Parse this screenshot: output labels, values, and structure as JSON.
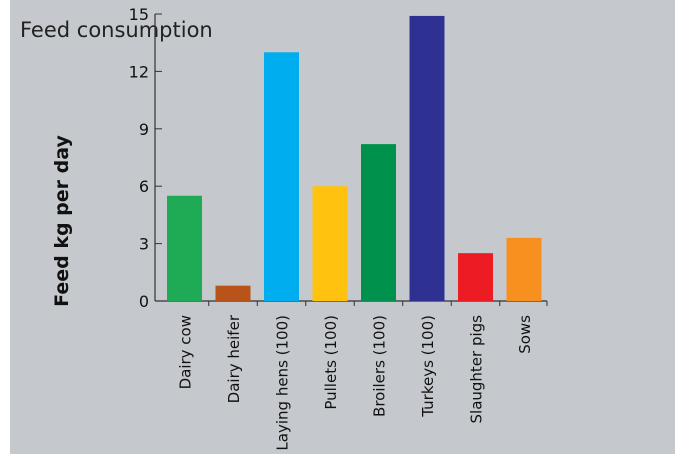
{
  "chart_data": {
    "type": "bar",
    "title": "Feed consumption",
    "xlabel": "",
    "ylabel": "Feed kg per day",
    "ylim": [
      0,
      15
    ],
    "yticks": [
      0,
      3,
      6,
      9,
      12,
      15
    ],
    "categories": [
      "Dairy cow",
      "Dairy heifer",
      "Laying hens (100)",
      "Pullets (100)",
      "Broilers (100)",
      "Turkeys (100)",
      "Slaughter pigs",
      "Sows"
    ],
    "values": [
      5.5,
      0.8,
      13.0,
      6.0,
      8.2,
      14.9,
      2.5,
      3.3
    ],
    "colors": [
      "#1faa55",
      "#b8531a",
      "#00aeef",
      "#ffc20e",
      "#00914c",
      "#2e3192",
      "#ed1c24",
      "#f7901e"
    ],
    "grid": false,
    "legend": "none"
  },
  "colors": {
    "background": "#c5c9cd",
    "axis": "#333333"
  }
}
